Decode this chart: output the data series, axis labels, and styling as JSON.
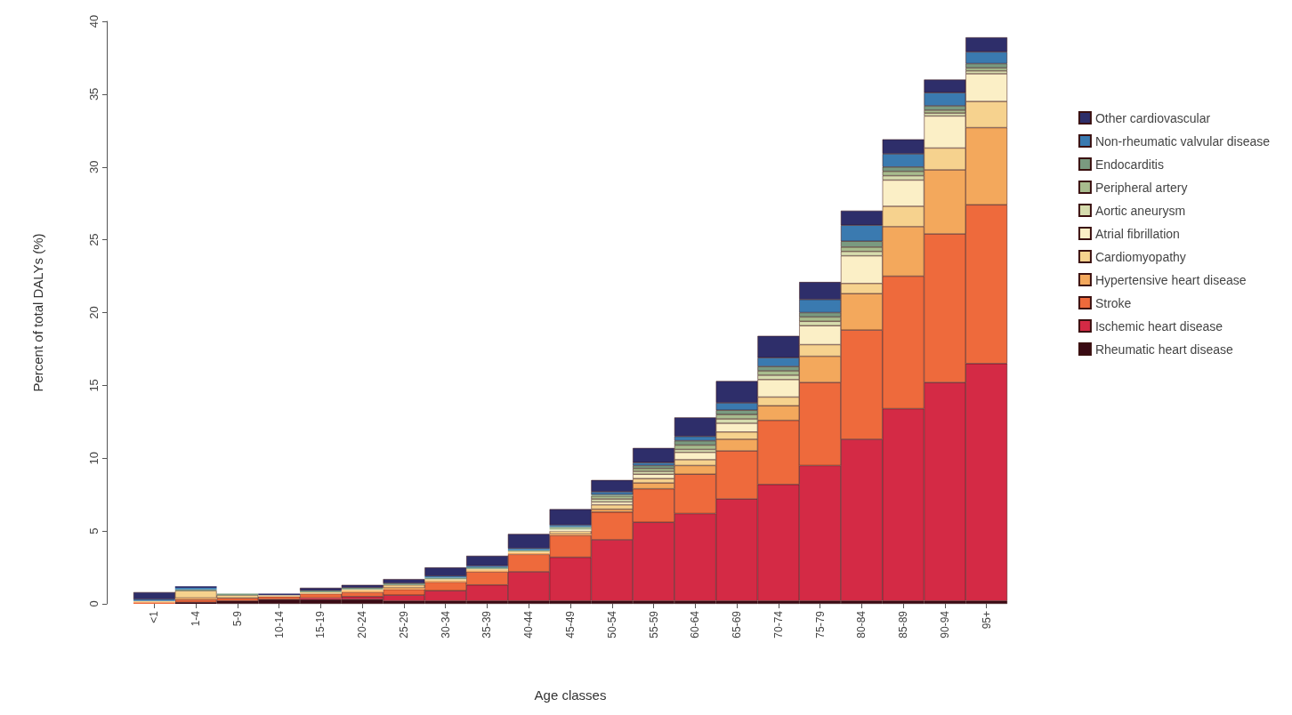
{
  "chart_data": {
    "type": "bar",
    "stacked": true,
    "xlabel": "Age classes",
    "ylabel": "Percent of total DALYs (%)",
    "categories": [
      "<1",
      "1-4",
      "5-9",
      "10-14",
      "15-19",
      "20-24",
      "25-29",
      "30-34",
      "35-39",
      "40-44",
      "45-49",
      "50-54",
      "55-59",
      "60-64",
      "65-69",
      "70-74",
      "75-79",
      "80-84",
      "85-89",
      "90-94",
      "95+"
    ],
    "ylim": [
      0,
      40
    ],
    "yticks": [
      0,
      5,
      10,
      15,
      20,
      25,
      30,
      35,
      40
    ],
    "grid": false,
    "legend": "right",
    "series": [
      {
        "name": "Rheumatic heart disease",
        "color": "#3a0a14",
        "values": [
          0,
          0.1,
          0.2,
          0.3,
          0.3,
          0.3,
          0.2,
          0.2,
          0.2,
          0.2,
          0.2,
          0.2,
          0.2,
          0.2,
          0.2,
          0.2,
          0.2,
          0.2,
          0.2,
          0.2,
          0.2
        ]
      },
      {
        "name": "Ischemic heart disease",
        "color": "#d42a45",
        "values": [
          0,
          0,
          0,
          0,
          0.1,
          0.2,
          0.4,
          0.7,
          1.1,
          2.0,
          3.0,
          4.2,
          5.4,
          6.0,
          7.0,
          8.0,
          9.3,
          11.1,
          13.2,
          15.0,
          16.3
        ]
      },
      {
        "name": "Stroke",
        "color": "#ee6a3c",
        "values": [
          0.1,
          0.2,
          0.2,
          0.2,
          0.3,
          0.3,
          0.4,
          0.6,
          0.9,
          1.2,
          1.5,
          1.9,
          2.3,
          2.7,
          3.3,
          4.4,
          5.7,
          7.5,
          9.1,
          10.2,
          10.9
        ]
      },
      {
        "name": "Hypertensive heart disease",
        "color": "#f3a85c",
        "values": [
          0,
          0.1,
          0,
          0,
          0,
          0.1,
          0.1,
          0.1,
          0.1,
          0.1,
          0.1,
          0.2,
          0.4,
          0.6,
          0.8,
          1.0,
          1.8,
          2.5,
          3.4,
          4.4,
          5.3
        ]
      },
      {
        "name": "Cardiomyopathy",
        "color": "#f6d28e",
        "values": [
          0.1,
          0.5,
          0.2,
          0.1,
          0.1,
          0.1,
          0.2,
          0.1,
          0.1,
          0.1,
          0.2,
          0.3,
          0.3,
          0.4,
          0.5,
          0.6,
          0.8,
          0.7,
          1.4,
          1.5,
          1.8
        ]
      },
      {
        "name": "Atrial fibrillation",
        "color": "#fbefc6",
        "values": [
          0,
          0,
          0,
          0,
          0,
          0,
          0,
          0,
          0,
          0,
          0.1,
          0.2,
          0.3,
          0.5,
          0.6,
          1.2,
          1.3,
          1.9,
          1.8,
          2.2,
          1.9
        ]
      },
      {
        "name": "Aortic aneurysm",
        "color": "#d6dcae",
        "values": [
          0,
          0,
          0,
          0,
          0,
          0,
          0,
          0,
          0,
          0,
          null,
          0.2,
          0.2,
          0.2,
          0.3,
          0.3,
          0.3,
          0.3,
          0.3,
          0.2,
          0.2
        ]
      },
      {
        "name": "Peripheral artery",
        "color": "#a8bc8e",
        "values": [
          0,
          0,
          0,
          0,
          0,
          0,
          0,
          0,
          0,
          0,
          0.1,
          0.2,
          0.2,
          0.3,
          0.3,
          0.3,
          0.3,
          0.3,
          0.3,
          0.2,
          0.2
        ]
      },
      {
        "name": "Endocarditis",
        "color": "#7a9a80",
        "values": [
          0,
          0.1,
          0.1,
          0,
          0.1,
          0.1,
          0.1,
          0.1,
          0.1,
          0.1,
          0.1,
          0.1,
          0.2,
          0.3,
          0.3,
          0.3,
          0.3,
          0.4,
          0.3,
          0.3,
          0.3
        ]
      },
      {
        "name": "Non-rheumatic valvular disease",
        "color": "#3a7ab0",
        "values": [
          0.1,
          0.1,
          0,
          0,
          0,
          0,
          0,
          0.1,
          0.1,
          0.1,
          0.1,
          0.2,
          0.2,
          0.3,
          0.5,
          0.6,
          0.9,
          1.1,
          0.9,
          0.9,
          0.8
        ]
      },
      {
        "name": "Other cardiovascular",
        "color": "#2e2e6a",
        "values": [
          0.5,
          0.1,
          0,
          0.1,
          0.2,
          0.2,
          0.3,
          0.6,
          0.7,
          1.0,
          1.1,
          0.8,
          1.0,
          1.3,
          1.5,
          1.5,
          1.2,
          1.0,
          1.0,
          0.9,
          1.0
        ]
      }
    ]
  }
}
